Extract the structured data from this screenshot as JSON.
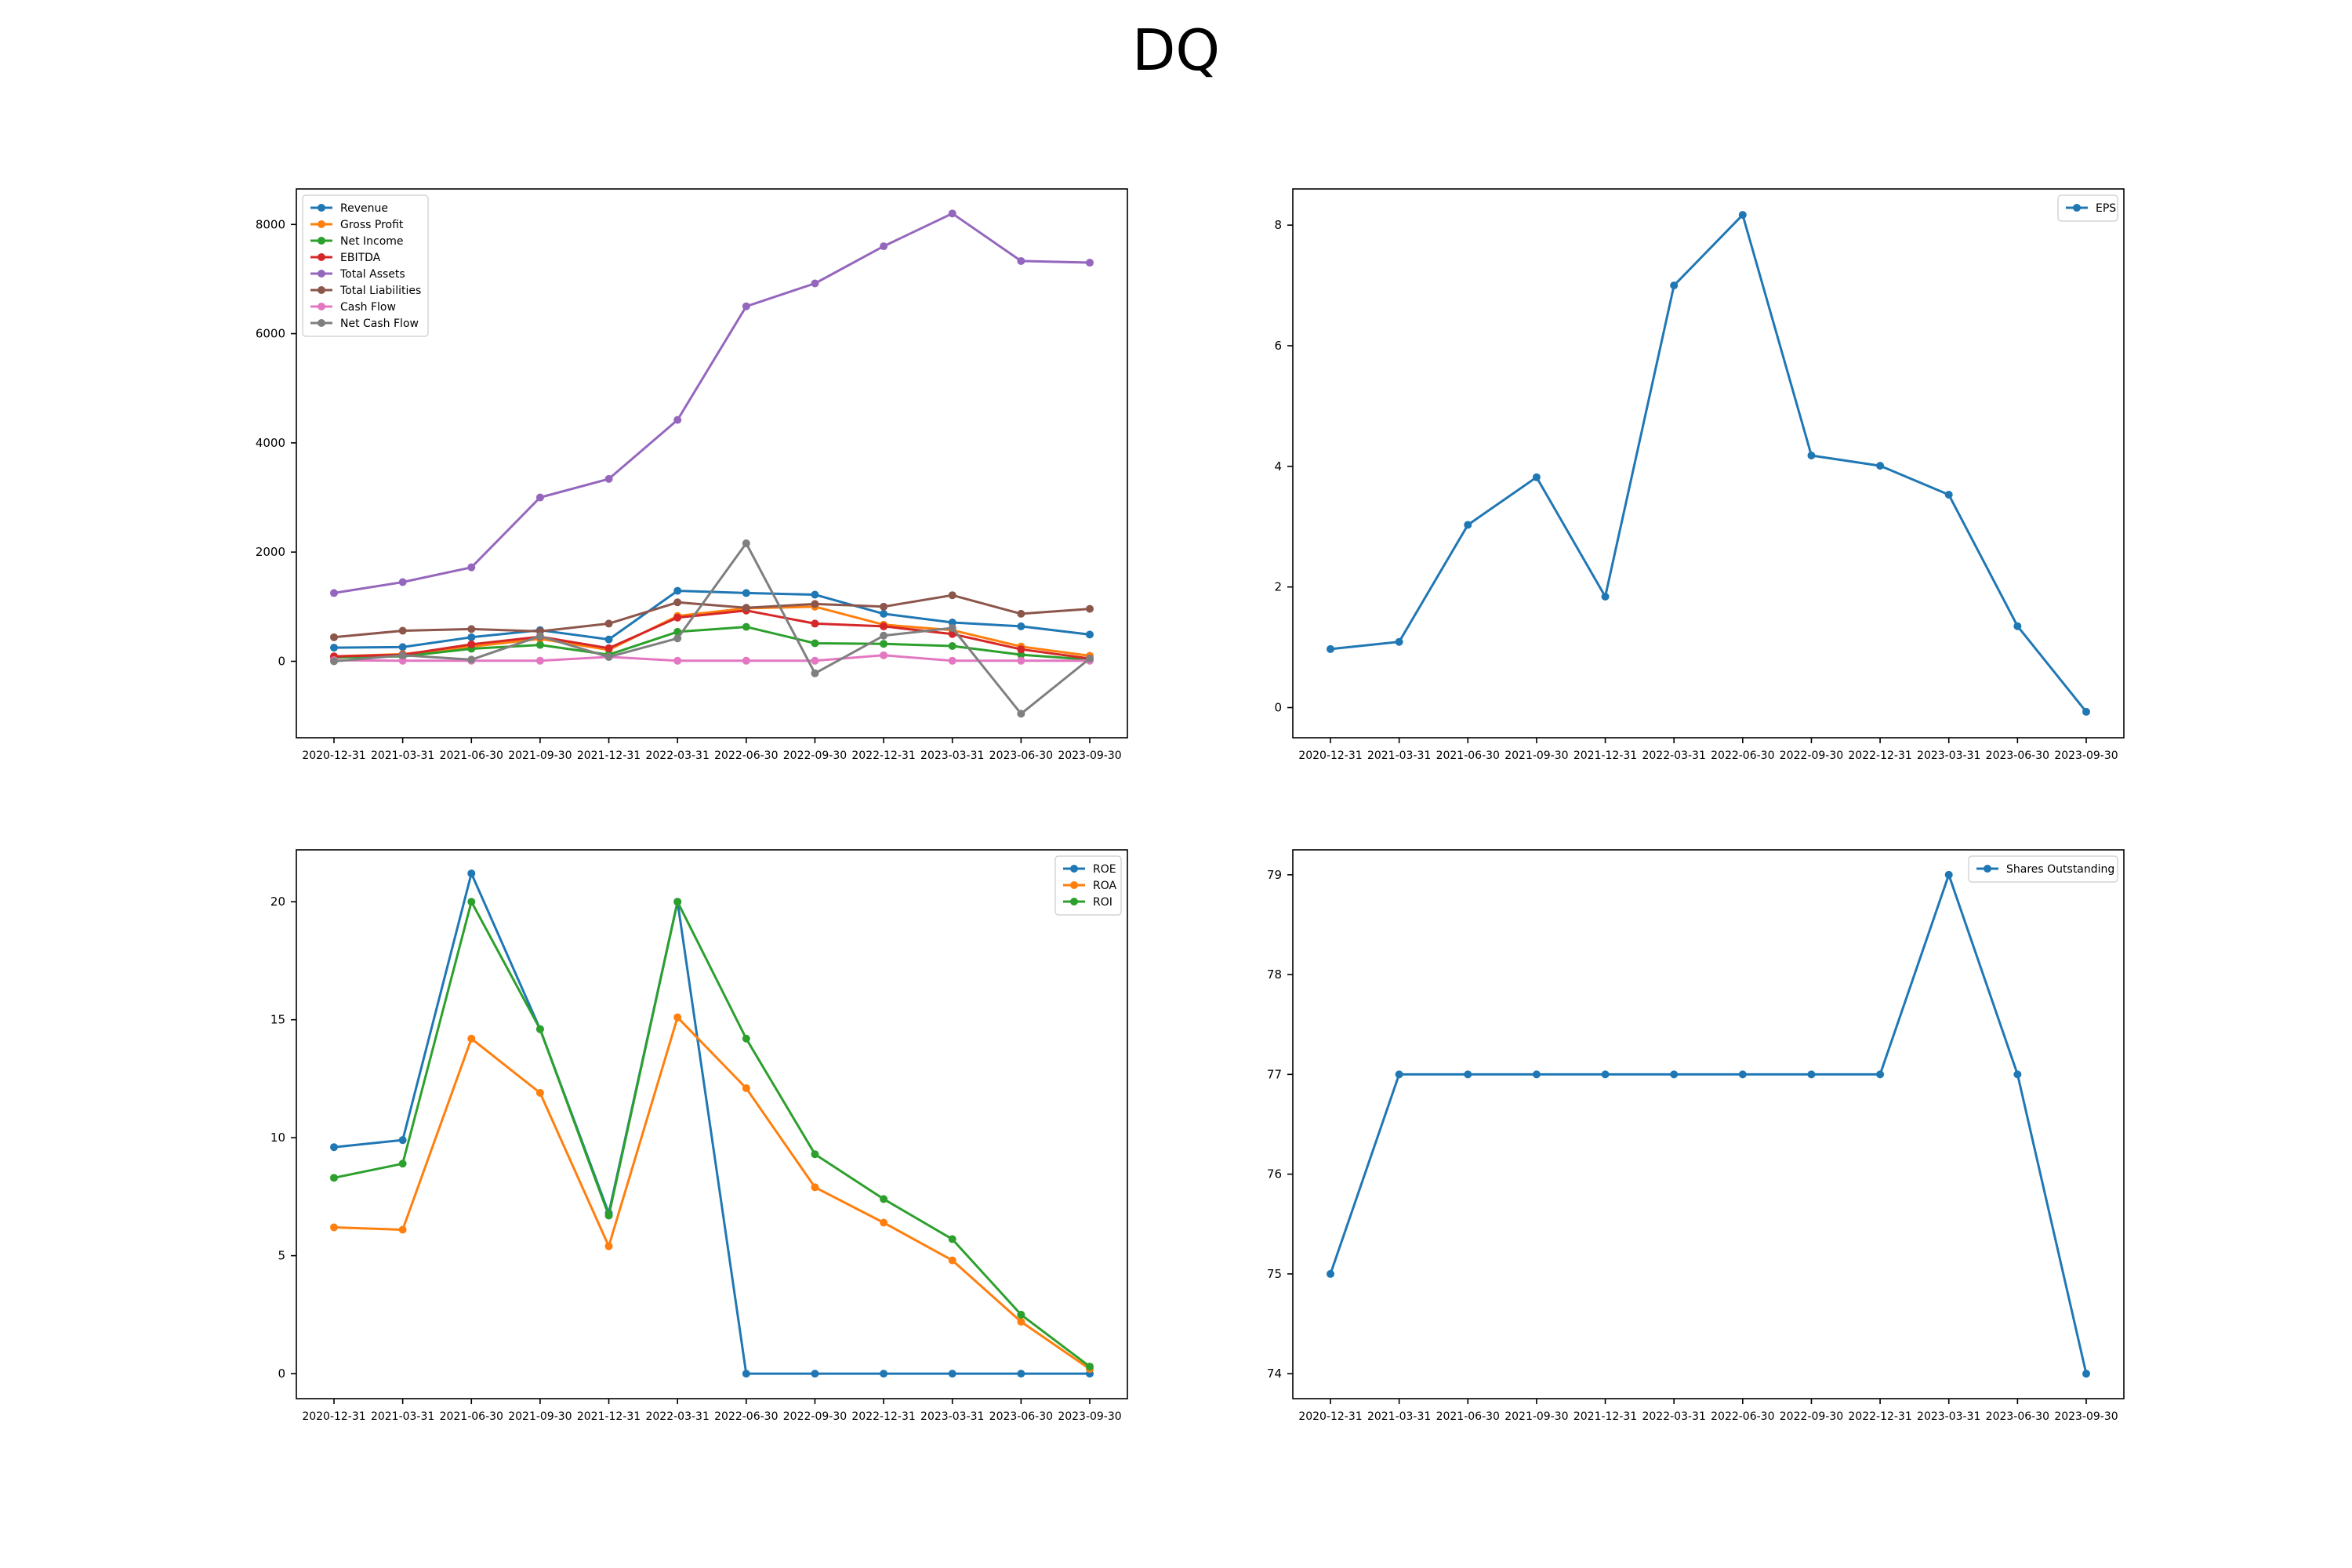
{
  "title": "DQ",
  "colors": {
    "blue": "#1f77b4",
    "orange": "#ff7f0e",
    "green": "#2ca02c",
    "red": "#d62728",
    "purple": "#9467bd",
    "brown": "#8c564b",
    "pink": "#e377c2",
    "gray": "#7f7f7f"
  },
  "chart_data": [
    {
      "type": "line",
      "x": [
        "2020-12-31",
        "2021-03-31",
        "2021-06-30",
        "2021-09-30",
        "2021-12-31",
        "2022-03-31",
        "2022-06-30",
        "2022-09-30",
        "2022-12-31",
        "2023-03-31",
        "2023-06-30",
        "2023-09-30"
      ],
      "ylim": [
        -1400,
        8650
      ],
      "yticks": [
        0,
        2000,
        4000,
        6000,
        8000
      ],
      "legend": "upper left",
      "series": [
        {
          "name": "Revenue",
          "color": "#1f77b4",
          "values": [
            250,
            260,
            440,
            570,
            400,
            1290,
            1250,
            1220,
            870,
            710,
            640,
            490
          ]
        },
        {
          "name": "Gross Profit",
          "color": "#ff7f0e",
          "values": [
            90,
            130,
            270,
            410,
            210,
            830,
            970,
            1000,
            670,
            570,
            270,
            100
          ]
        },
        {
          "name": "Net Income",
          "color": "#2ca02c",
          "values": [
            70,
            90,
            230,
            300,
            120,
            540,
            630,
            330,
            320,
            280,
            120,
            30
          ]
        },
        {
          "name": "EBITDA",
          "color": "#d62728",
          "values": [
            90,
            120,
            310,
            450,
            240,
            800,
            930,
            690,
            640,
            500,
            220,
            50
          ]
        },
        {
          "name": "Total Assets",
          "color": "#9467bd",
          "values": [
            1250,
            1450,
            1720,
            3000,
            3340,
            4420,
            6500,
            6920,
            7600,
            8200,
            7330,
            7300
          ]
        },
        {
          "name": "Total Liabilities",
          "color": "#8c564b",
          "values": [
            440,
            560,
            590,
            550,
            690,
            1080,
            980,
            1050,
            1000,
            1210,
            870,
            960
          ]
        },
        {
          "name": "Cash Flow",
          "color": "#e377c2",
          "values": [
            20,
            10,
            10,
            10,
            80,
            10,
            10,
            10,
            110,
            10,
            10,
            10
          ]
        },
        {
          "name": "Net Cash Flow",
          "color": "#7f7f7f",
          "values": [
            0,
            110,
            30,
            460,
            80,
            420,
            2160,
            -220,
            470,
            610,
            -960,
            50
          ]
        }
      ]
    },
    {
      "type": "line",
      "x": [
        "2020-12-31",
        "2021-03-31",
        "2021-06-30",
        "2021-09-30",
        "2021-12-31",
        "2022-03-31",
        "2022-06-30",
        "2022-09-30",
        "2022-12-31",
        "2023-03-31",
        "2023-06-30",
        "2023-09-30"
      ],
      "ylim": [
        -0.5,
        8.6
      ],
      "yticks": [
        0,
        2,
        4,
        6,
        8
      ],
      "legend": "upper right",
      "series": [
        {
          "name": "EPS",
          "color": "#1f77b4",
          "values": [
            0.97,
            1.09,
            3.03,
            3.82,
            1.84,
            7.0,
            8.17,
            4.18,
            4.01,
            3.53,
            1.35,
            -0.07
          ]
        }
      ]
    },
    {
      "type": "line",
      "x": [
        "2020-12-31",
        "2021-03-31",
        "2021-06-30",
        "2021-09-30",
        "2021-12-31",
        "2022-03-31",
        "2022-06-30",
        "2022-09-30",
        "2022-12-31",
        "2023-03-31",
        "2023-06-30",
        "2023-09-30"
      ],
      "ylim": [
        -1.06,
        22.2
      ],
      "yticks": [
        0,
        5,
        10,
        15,
        20
      ],
      "legend": "upper right",
      "series": [
        {
          "name": "ROE",
          "color": "#1f77b4",
          "values": [
            9.6,
            9.9,
            21.2,
            14.6,
            6.8,
            20.0,
            0,
            0,
            0,
            0,
            0,
            0
          ]
        },
        {
          "name": "ROA",
          "color": "#ff7f0e",
          "values": [
            6.2,
            6.1,
            14.2,
            11.9,
            5.4,
            15.1,
            12.1,
            7.9,
            6.4,
            4.8,
            2.2,
            0.2
          ]
        },
        {
          "name": "ROI",
          "color": "#2ca02c",
          "values": [
            8.3,
            8.9,
            20.0,
            14.6,
            6.7,
            20.0,
            14.2,
            9.3,
            7.4,
            5.7,
            2.5,
            0.3
          ]
        }
      ]
    },
    {
      "type": "line",
      "x": [
        "2020-12-31",
        "2021-03-31",
        "2021-06-30",
        "2021-09-30",
        "2021-12-31",
        "2022-03-31",
        "2022-06-30",
        "2022-09-30",
        "2022-12-31",
        "2023-03-31",
        "2023-06-30",
        "2023-09-30"
      ],
      "ylim": [
        73.75,
        79.25
      ],
      "yticks": [
        74,
        75,
        76,
        77,
        78,
        79
      ],
      "legend": "upper right",
      "series": [
        {
          "name": "Shares Outstanding",
          "color": "#1f77b4",
          "values": [
            75,
            77,
            77,
            77,
            77,
            77,
            77,
            77,
            77,
            79,
            77,
            74
          ]
        }
      ]
    }
  ]
}
